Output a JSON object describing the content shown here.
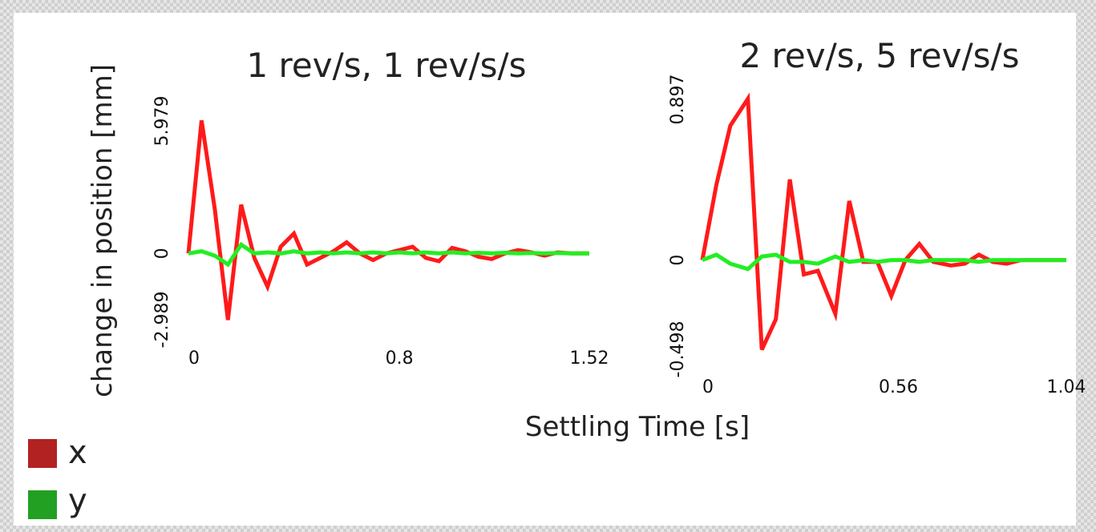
{
  "chart_data": {
    "ylabel": "change in position [mm]",
    "xlabel": "Settling Time [s]",
    "legend": {
      "position": "bottom-left",
      "entries": [
        {
          "label": "x",
          "color": "#b22222"
        },
        {
          "label": "y",
          "color": "#22a022"
        }
      ]
    },
    "panels": [
      {
        "type": "line",
        "title": "1 rev/s, 1 rev/s/s",
        "xticks": [
          "0",
          "0.8",
          "1.52"
        ],
        "xtick_values": [
          0,
          0.8,
          1.52
        ],
        "yticks": [
          "-2.989",
          "0",
          "5.979"
        ],
        "ytick_values": [
          -2.989,
          0,
          5.979
        ],
        "xlim": [
          0,
          1.52
        ],
        "ylim": [
          -2.989,
          5.979
        ],
        "series": [
          {
            "name": "x",
            "color": "#ff1a1a",
            "x": [
              0,
              0.05,
              0.1,
              0.15,
              0.2,
              0.25,
              0.3,
              0.35,
              0.4,
              0.45,
              0.5,
              0.55,
              0.6,
              0.65,
              0.7,
              0.75,
              0.8,
              0.85,
              0.9,
              0.95,
              1.0,
              1.05,
              1.1,
              1.15,
              1.2,
              1.25,
              1.3,
              1.35,
              1.4,
              1.45,
              1.52
            ],
            "y": [
              0.0,
              6.0,
              2.0,
              -3.0,
              2.2,
              -0.2,
              -1.5,
              0.3,
              0.9,
              -0.5,
              -0.2,
              0.1,
              0.5,
              0.0,
              -0.3,
              0.0,
              0.15,
              0.3,
              -0.2,
              -0.35,
              0.25,
              0.1,
              -0.15,
              -0.25,
              0.0,
              0.15,
              0.05,
              -0.1,
              0.05,
              0.0,
              0.0
            ]
          },
          {
            "name": "y",
            "color": "#22ee22",
            "x": [
              0,
              0.05,
              0.1,
              0.15,
              0.2,
              0.25,
              0.3,
              0.35,
              0.4,
              0.45,
              0.5,
              0.55,
              0.6,
              0.65,
              0.7,
              0.75,
              0.8,
              0.85,
              0.9,
              0.95,
              1.0,
              1.05,
              1.1,
              1.15,
              1.2,
              1.25,
              1.3,
              1.35,
              1.4,
              1.45,
              1.52
            ],
            "y": [
              0.0,
              0.1,
              -0.1,
              -0.5,
              0.4,
              0.0,
              0.05,
              0.0,
              0.1,
              0.0,
              0.05,
              0.0,
              0.05,
              0.0,
              0.05,
              0.0,
              0.05,
              0.0,
              0.05,
              0.0,
              0.05,
              0.0,
              0.03,
              0.0,
              0.03,
              0.0,
              0.02,
              0.0,
              0.02,
              0.0,
              0.0
            ]
          }
        ]
      },
      {
        "type": "line",
        "title": "2 rev/s, 5 rev/s/s",
        "xticks": [
          "0",
          "0.56",
          "1.04"
        ],
        "xtick_values": [
          0,
          0.56,
          1.04
        ],
        "yticks": [
          "-0.498",
          "0",
          "0.897"
        ],
        "ytick_values": [
          -0.498,
          0,
          0.897
        ],
        "xlim": [
          0,
          1.04
        ],
        "ylim": [
          -0.498,
          0.897
        ],
        "series": [
          {
            "name": "x",
            "color": "#ff1a1a",
            "x": [
              0,
              0.04,
              0.08,
              0.13,
              0.17,
              0.21,
              0.25,
              0.29,
              0.33,
              0.38,
              0.42,
              0.46,
              0.5,
              0.54,
              0.58,
              0.62,
              0.66,
              0.71,
              0.75,
              0.79,
              0.83,
              0.87,
              0.91,
              0.96,
              1.0,
              1.04
            ],
            "y": [
              0.0,
              0.42,
              0.75,
              0.9,
              -0.5,
              -0.33,
              0.45,
              -0.08,
              -0.06,
              -0.3,
              0.33,
              -0.01,
              -0.01,
              -0.2,
              0.0,
              0.09,
              -0.01,
              -0.03,
              -0.02,
              0.03,
              -0.01,
              -0.02,
              0.0,
              0.0,
              0.0,
              0.0
            ]
          },
          {
            "name": "y",
            "color": "#22ee22",
            "x": [
              0,
              0.04,
              0.08,
              0.13,
              0.17,
              0.21,
              0.25,
              0.29,
              0.33,
              0.38,
              0.42,
              0.46,
              0.5,
              0.54,
              0.58,
              0.62,
              0.66,
              0.71,
              0.75,
              0.79,
              0.83,
              0.87,
              0.91,
              0.96,
              1.0,
              1.04
            ],
            "y": [
              0.0,
              0.03,
              -0.02,
              -0.05,
              0.02,
              0.03,
              -0.01,
              -0.01,
              -0.02,
              0.02,
              -0.01,
              0.0,
              -0.01,
              0.0,
              0.0,
              -0.01,
              0.0,
              0.0,
              0.0,
              -0.01,
              0.0,
              0.0,
              0.0,
              0.0,
              0.0,
              0.0
            ]
          }
        ]
      }
    ]
  }
}
